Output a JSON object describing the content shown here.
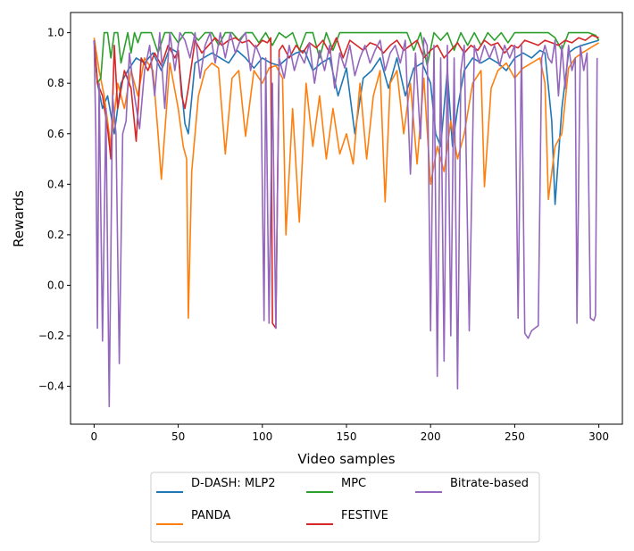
{
  "chart_data": {
    "type": "line",
    "title": "",
    "xlabel": "Video samples",
    "ylabel": "Rewards",
    "xlim": [
      -14,
      314
    ],
    "ylim": [
      -0.55,
      1.08
    ],
    "xticks": [
      0,
      50,
      100,
      150,
      200,
      250,
      300
    ],
    "yticks": [
      -0.4,
      -0.2,
      0.0,
      0.2,
      0.4,
      0.6,
      0.8,
      1.0
    ],
    "xtick_labels": [
      "0",
      "50",
      "100",
      "150",
      "200",
      "250",
      "300"
    ],
    "ytick_labels": [
      "−0.4",
      "−0.2",
      "0.0",
      "0.2",
      "0.4",
      "0.6",
      "0.8",
      "1.0"
    ],
    "grid": false,
    "legend_position": "below plot, centered",
    "series": [
      {
        "name": "D-DASH: MLP2",
        "color": "#1f77b4",
        "x": [
          0,
          2,
          5,
          8,
          12,
          16,
          20,
          25,
          30,
          35,
          40,
          45,
          50,
          54,
          56,
          60,
          65,
          70,
          75,
          80,
          85,
          90,
          95,
          100,
          105,
          110,
          115,
          120,
          125,
          130,
          135,
          140,
          145,
          150,
          155,
          160,
          165,
          170,
          175,
          180,
          185,
          190,
          195,
          200,
          203,
          206,
          210,
          213,
          216,
          220,
          225,
          230,
          235,
          240,
          245,
          250,
          255,
          260,
          265,
          268,
          272,
          274,
          278,
          282,
          286,
          290,
          295,
          300
        ],
        "y": [
          0.97,
          0.8,
          0.7,
          0.75,
          0.6,
          0.8,
          0.85,
          0.9,
          0.88,
          0.92,
          0.85,
          0.94,
          0.92,
          0.64,
          0.6,
          0.88,
          0.9,
          0.92,
          0.9,
          0.88,
          0.93,
          0.9,
          0.86,
          0.9,
          0.88,
          0.87,
          0.9,
          0.92,
          0.93,
          0.85,
          0.88,
          0.9,
          0.75,
          0.86,
          0.6,
          0.82,
          0.85,
          0.9,
          0.78,
          0.9,
          0.75,
          0.86,
          0.88,
          0.8,
          0.6,
          0.55,
          0.85,
          0.55,
          0.7,
          0.85,
          0.9,
          0.88,
          0.9,
          0.88,
          0.85,
          0.9,
          0.92,
          0.9,
          0.93,
          0.92,
          0.65,
          0.32,
          0.7,
          0.92,
          0.94,
          0.95,
          0.96,
          0.97
        ]
      },
      {
        "name": "PANDA",
        "color": "#ff7f0e",
        "x": [
          0,
          3,
          6,
          10,
          14,
          18,
          22,
          26,
          30,
          35,
          38,
          40,
          45,
          50,
          53,
          55,
          56,
          58,
          62,
          66,
          70,
          74,
          78,
          82,
          86,
          90,
          95,
          100,
          104,
          108,
          112,
          114,
          118,
          122,
          126,
          130,
          134,
          138,
          142,
          146,
          150,
          154,
          158,
          162,
          166,
          170,
          173,
          176,
          180,
          184,
          188,
          192,
          196,
          200,
          204,
          208,
          212,
          216,
          220,
          225,
          230,
          232,
          236,
          240,
          245,
          250,
          255,
          260,
          265,
          268,
          270,
          274,
          278,
          282,
          286,
          290,
          295,
          300
        ],
        "y": [
          0.98,
          0.85,
          0.75,
          0.55,
          0.8,
          0.7,
          0.85,
          0.75,
          0.9,
          0.85,
          0.6,
          0.42,
          0.88,
          0.7,
          0.55,
          0.5,
          -0.13,
          0.45,
          0.75,
          0.85,
          0.88,
          0.86,
          0.52,
          0.82,
          0.85,
          0.59,
          0.85,
          0.8,
          0.86,
          0.87,
          0.82,
          0.2,
          0.7,
          0.25,
          0.8,
          0.55,
          0.75,
          0.5,
          0.7,
          0.52,
          0.6,
          0.48,
          0.8,
          0.5,
          0.75,
          0.85,
          0.33,
          0.8,
          0.85,
          0.6,
          0.8,
          0.48,
          0.82,
          0.4,
          0.55,
          0.45,
          0.65,
          0.5,
          0.6,
          0.8,
          0.85,
          0.39,
          0.78,
          0.85,
          0.88,
          0.82,
          0.86,
          0.88,
          0.9,
          0.8,
          0.34,
          0.55,
          0.6,
          0.86,
          0.9,
          0.92,
          0.94,
          0.96
        ]
      },
      {
        "name": "MPC",
        "color": "#2ca02c",
        "x": [
          0,
          2,
          4,
          6,
          8,
          10,
          12,
          14,
          16,
          20,
          22,
          24,
          26,
          28,
          30,
          34,
          38,
          42,
          46,
          50,
          54,
          58,
          62,
          66,
          70,
          74,
          78,
          82,
          86,
          90,
          94,
          98,
          102,
          106,
          110,
          114,
          118,
          122,
          126,
          130,
          134,
          138,
          142,
          146,
          150,
          154,
          158,
          162,
          166,
          170,
          174,
          178,
          182,
          186,
          190,
          194,
          198,
          202,
          206,
          210,
          214,
          218,
          222,
          226,
          230,
          234,
          238,
          242,
          246,
          250,
          254,
          258,
          262,
          266,
          270,
          274,
          278,
          282,
          286,
          290,
          294,
          298,
          300
        ],
        "y": [
          0.97,
          0.8,
          0.82,
          1.0,
          1.0,
          0.9,
          1.0,
          1.0,
          0.88,
          1.0,
          0.92,
          1.0,
          0.96,
          1.0,
          1.0,
          1.0,
          0.92,
          1.0,
          1.0,
          0.96,
          1.0,
          1.0,
          0.97,
          1.0,
          1.0,
          0.95,
          1.0,
          1.0,
          0.97,
          1.0,
          1.0,
          0.96,
          1.0,
          0.95,
          1.0,
          0.98,
          1.0,
          0.93,
          1.0,
          1.0,
          0.9,
          1.0,
          0.93,
          1.0,
          1.0,
          1.0,
          1.0,
          1.0,
          1.0,
          1.0,
          1.0,
          1.0,
          1.0,
          1.0,
          0.93,
          1.0,
          0.87,
          1.0,
          0.97,
          1.0,
          0.93,
          1.0,
          0.95,
          1.0,
          0.95,
          1.0,
          0.97,
          1.0,
          0.96,
          1.0,
          1.0,
          1.0,
          1.0,
          1.0,
          1.0,
          0.98,
          0.93,
          1.0,
          1.0,
          1.0,
          1.0,
          0.99,
          0.97
        ]
      },
      {
        "name": "FESTIVE",
        "color": "#d62728",
        "x": [
          0,
          2,
          5,
          8,
          10,
          12,
          14,
          18,
          22,
          25,
          28,
          32,
          36,
          40,
          44,
          48,
          50,
          52,
          54,
          56,
          60,
          64,
          68,
          72,
          76,
          80,
          84,
          88,
          92,
          96,
          100,
          103,
          105,
          106,
          108,
          110,
          112,
          116,
          120,
          124,
          128,
          132,
          136,
          140,
          144,
          148,
          152,
          156,
          160,
          164,
          168,
          172,
          176,
          180,
          184,
          188,
          192,
          196,
          200,
          204,
          208,
          212,
          216,
          220,
          224,
          228,
          232,
          236,
          240,
          244,
          248,
          252,
          256,
          260,
          264,
          268,
          272,
          276,
          280,
          284,
          288,
          292,
          296,
          300
        ],
        "y": [
          0.97,
          0.8,
          0.75,
          0.62,
          0.5,
          0.95,
          0.7,
          0.85,
          0.78,
          0.57,
          0.9,
          0.85,
          0.92,
          0.87,
          0.95,
          0.9,
          0.93,
          0.75,
          0.7,
          0.78,
          0.97,
          0.92,
          0.95,
          0.98,
          0.95,
          0.97,
          0.98,
          0.96,
          0.97,
          0.94,
          0.97,
          0.96,
          0.98,
          -0.15,
          -0.17,
          0.93,
          0.95,
          0.9,
          0.95,
          0.92,
          0.96,
          0.94,
          0.97,
          0.92,
          0.98,
          0.9,
          0.97,
          0.95,
          0.93,
          0.96,
          0.95,
          0.92,
          0.95,
          0.97,
          0.93,
          0.95,
          0.97,
          0.9,
          0.93,
          0.95,
          0.9,
          0.93,
          0.96,
          0.92,
          0.95,
          0.93,
          0.97,
          0.95,
          0.96,
          0.92,
          0.95,
          0.94,
          0.97,
          0.96,
          0.95,
          0.97,
          0.96,
          0.95,
          0.97,
          0.96,
          0.98,
          0.97,
          0.99,
          0.98
        ]
      },
      {
        "name": "Bitrate-based",
        "color": "#9467bd",
        "x": [
          0,
          1,
          2,
          3,
          5,
          7,
          9,
          11,
          13,
          15,
          17,
          19,
          21,
          24,
          27,
          30,
          33,
          36,
          39,
          42,
          45,
          48,
          51,
          54,
          57,
          60,
          63,
          66,
          69,
          72,
          75,
          78,
          81,
          84,
          87,
          90,
          93,
          96,
          99,
          101,
          102,
          104,
          106,
          108,
          110,
          113,
          116,
          119,
          122,
          125,
          128,
          131,
          134,
          137,
          140,
          143,
          146,
          149,
          152,
          155,
          158,
          161,
          164,
          167,
          170,
          173,
          176,
          179,
          182,
          185,
          188,
          191,
          194,
          196,
          198,
          200,
          202,
          204,
          206,
          208,
          210,
          212,
          214,
          216,
          218,
          220,
          223,
          226,
          229,
          232,
          235,
          238,
          241,
          244,
          247,
          250,
          252,
          254,
          256,
          258,
          260,
          262,
          264,
          266,
          268,
          270,
          272,
          274,
          276,
          278,
          280,
          282,
          284,
          286,
          287,
          289,
          291,
          293,
          295,
          297,
          298,
          299
        ],
        "y": [
          0.97,
          0.6,
          -0.17,
          0.8,
          -0.22,
          0.7,
          -0.48,
          0.75,
          0.6,
          -0.31,
          0.6,
          0.65,
          0.92,
          0.75,
          0.62,
          0.85,
          0.95,
          0.75,
          1.0,
          0.7,
          1.0,
          0.85,
          1.0,
          0.97,
          0.9,
          1.0,
          0.82,
          0.95,
          1.0,
          0.88,
          1.0,
          0.9,
          1.0,
          0.92,
          0.97,
          1.0,
          0.85,
          0.95,
          0.9,
          -0.14,
          0.9,
          -0.15,
          0.8,
          -0.17,
          0.9,
          0.82,
          0.95,
          0.85,
          0.92,
          0.88,
          0.96,
          0.8,
          0.93,
          0.85,
          0.95,
          0.78,
          0.92,
          0.86,
          0.95,
          0.83,
          0.9,
          0.95,
          0.88,
          0.93,
          0.97,
          0.85,
          0.92,
          0.95,
          0.88,
          0.97,
          0.44,
          0.92,
          0.58,
          0.98,
          0.95,
          -0.18,
          0.95,
          -0.36,
          0.9,
          -0.3,
          0.95,
          -0.2,
          0.9,
          -0.41,
          0.85,
          0.95,
          -0.18,
          0.95,
          0.88,
          0.95,
          0.9,
          0.95,
          0.87,
          0.95,
          0.9,
          0.95,
          -0.13,
          0.95,
          -0.19,
          -0.21,
          -0.18,
          -0.17,
          -0.16,
          0.9,
          0.95,
          0.9,
          0.88,
          0.97,
          0.75,
          0.95,
          0.78,
          0.95,
          0.85,
          0.9,
          -0.15,
          0.95,
          0.85,
          0.92,
          -0.13,
          -0.14,
          -0.12,
          0.9
        ]
      }
    ]
  }
}
